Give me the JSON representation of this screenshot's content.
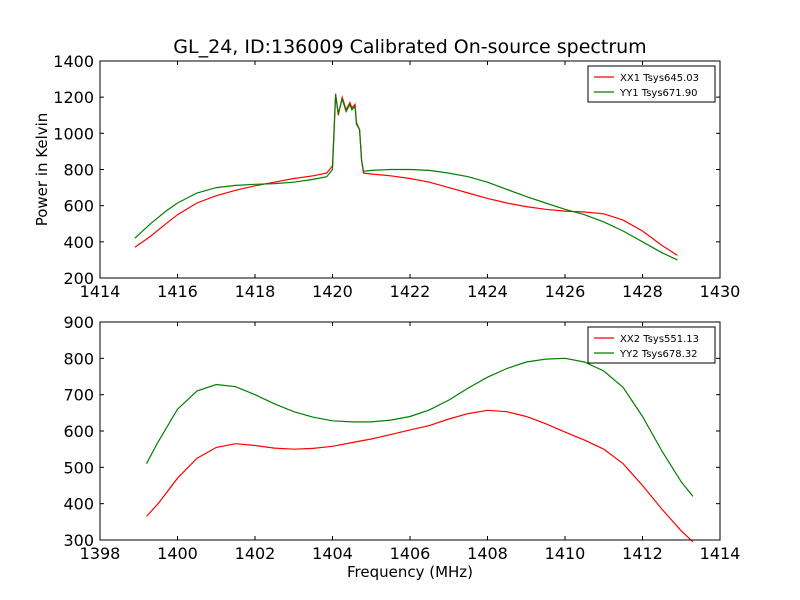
{
  "title": "GL_24, ID:136009 Calibrated On-source spectrum",
  "chart_data": [
    {
      "type": "line",
      "title": "GL_24, ID:136009 Calibrated On-source spectrum",
      "xlabel": "",
      "ylabel": "Power in Kelvin",
      "xlim": [
        1414,
        1430
      ],
      "ylim": [
        200,
        1400
      ],
      "xticks": [
        1414,
        1416,
        1418,
        1420,
        1422,
        1424,
        1426,
        1428,
        1430
      ],
      "yticks": [
        200,
        400,
        600,
        800,
        1000,
        1200,
        1400
      ],
      "grid": false,
      "legend_position": "top-right",
      "series": [
        {
          "name": "XX1 Tsys645.03",
          "color": "#ff0000",
          "x": [
            1414.9,
            1415.3,
            1415.7,
            1416.0,
            1416.5,
            1417.0,
            1417.5,
            1418.0,
            1418.5,
            1419.0,
            1419.5,
            1419.85,
            1420.0,
            1420.08,
            1420.15,
            1420.25,
            1420.35,
            1420.45,
            1420.5,
            1420.58,
            1420.62,
            1420.7,
            1420.75,
            1420.8,
            1421.0,
            1421.5,
            1422.0,
            1422.5,
            1423.0,
            1423.5,
            1424.0,
            1424.5,
            1425.0,
            1425.5,
            1426.0,
            1426.5,
            1427.0,
            1427.5,
            1428.0,
            1428.5,
            1428.9
          ],
          "y": [
            370,
            430,
            500,
            550,
            615,
            655,
            685,
            710,
            730,
            750,
            765,
            780,
            820,
            1220,
            1100,
            1200,
            1130,
            1170,
            1140,
            1160,
            1060,
            1020,
            850,
            780,
            775,
            765,
            750,
            730,
            700,
            670,
            640,
            615,
            595,
            580,
            570,
            565,
            555,
            520,
            460,
            380,
            325
          ]
        },
        {
          "name": "YY1 Tsys671.90",
          "color": "#008000",
          "x": [
            1414.9,
            1415.3,
            1415.7,
            1416.0,
            1416.5,
            1417.0,
            1417.5,
            1418.0,
            1418.5,
            1419.0,
            1419.5,
            1419.85,
            1420.0,
            1420.08,
            1420.15,
            1420.25,
            1420.35,
            1420.45,
            1420.5,
            1420.58,
            1420.62,
            1420.7,
            1420.75,
            1420.8,
            1421.0,
            1421.5,
            1422.0,
            1422.5,
            1423.0,
            1423.5,
            1424.0,
            1424.5,
            1425.0,
            1425.5,
            1426.0,
            1426.5,
            1427.0,
            1427.5,
            1428.0,
            1428.5,
            1428.9
          ],
          "y": [
            420,
            500,
            570,
            615,
            670,
            700,
            712,
            718,
            722,
            730,
            745,
            760,
            800,
            1210,
            1110,
            1190,
            1120,
            1160,
            1130,
            1150,
            1050,
            1020,
            850,
            790,
            795,
            800,
            800,
            795,
            780,
            760,
            730,
            690,
            650,
            615,
            580,
            550,
            510,
            460,
            400,
            340,
            300
          ]
        }
      ]
    },
    {
      "type": "line",
      "title": "",
      "xlabel": "Frequency (MHz)",
      "ylabel": "",
      "xlim": [
        1398,
        1414
      ],
      "ylim": [
        300,
        900
      ],
      "xticks": [
        1398,
        1400,
        1402,
        1404,
        1406,
        1408,
        1410,
        1412,
        1414
      ],
      "yticks": [
        300,
        400,
        500,
        600,
        700,
        800,
        900
      ],
      "grid": false,
      "legend_position": "top-right",
      "series": [
        {
          "name": "XX2 Tsys551.13",
          "color": "#ff0000",
          "x": [
            1399.2,
            1399.5,
            1400.0,
            1400.5,
            1401.0,
            1401.5,
            1402.0,
            1402.5,
            1403.0,
            1403.5,
            1404.0,
            1404.5,
            1405.0,
            1405.5,
            1406.0,
            1406.5,
            1407.0,
            1407.5,
            1408.0,
            1408.5,
            1409.0,
            1409.5,
            1410.0,
            1410.5,
            1411.0,
            1411.5,
            1412.0,
            1412.5,
            1413.0,
            1413.3
          ],
          "y": [
            365,
            400,
            470,
            525,
            555,
            565,
            560,
            553,
            550,
            552,
            558,
            568,
            578,
            590,
            603,
            615,
            633,
            648,
            657,
            653,
            640,
            620,
            597,
            575,
            550,
            510,
            450,
            385,
            325,
            295
          ]
        },
        {
          "name": "YY2 Tsys678.32",
          "color": "#008000",
          "x": [
            1399.2,
            1399.5,
            1400.0,
            1400.5,
            1401.0,
            1401.5,
            1402.0,
            1402.5,
            1403.0,
            1403.5,
            1404.0,
            1404.5,
            1405.0,
            1405.5,
            1406.0,
            1406.5,
            1407.0,
            1407.5,
            1408.0,
            1408.5,
            1409.0,
            1409.5,
            1410.0,
            1410.5,
            1411.0,
            1411.5,
            1412.0,
            1412.5,
            1413.0,
            1413.3
          ],
          "y": [
            510,
            570,
            660,
            710,
            728,
            722,
            700,
            675,
            653,
            638,
            628,
            625,
            625,
            630,
            640,
            658,
            685,
            718,
            748,
            772,
            790,
            798,
            800,
            790,
            765,
            720,
            640,
            545,
            460,
            420
          ]
        }
      ]
    }
  ]
}
